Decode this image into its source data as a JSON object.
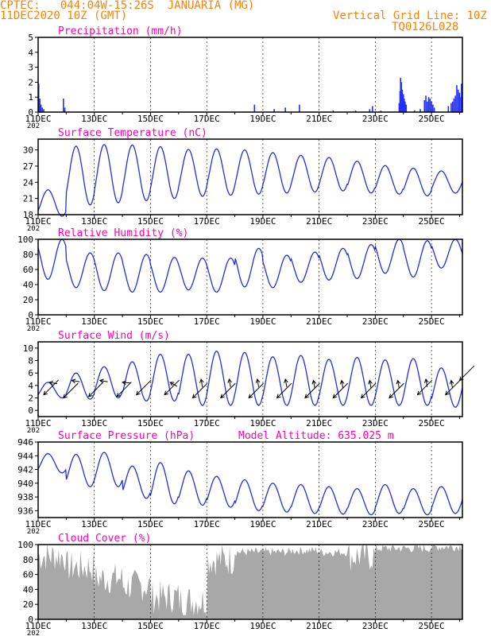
{
  "header": {
    "line1": "CPTEC:   044:04W-15:26S  JANUARIA (MG)",
    "line2": "11DEC2020 10Z (GMT)",
    "right1": "Vertical Grid Line: 10Z",
    "right2": "TQ0126L028",
    "color": "#ff8000"
  },
  "colors": {
    "title": "#ff00aa",
    "line": "#2030e0",
    "precip_bar": "#2030ff",
    "cloud_fill": "#a8a8a8",
    "axis": "#000000",
    "grid": "#000000"
  },
  "x_axis": {
    "labels": [
      "11DEC",
      "13DEC",
      "15DEC",
      "17DEC",
      "19DEC",
      "21DEC",
      "23DEC",
      "25DEC"
    ],
    "year_label": "202"
  },
  "chart_data": [
    {
      "type": "bar",
      "title": "Precipitation (mm/h)",
      "ylim": [
        0,
        5
      ],
      "yticks": [
        0,
        1,
        2,
        3,
        4,
        5
      ],
      "x_range_days": [
        0,
        15.1
      ],
      "bars": [
        [
          0.02,
          1.9
        ],
        [
          0.06,
          0.9
        ],
        [
          0.1,
          0.5
        ],
        [
          0.15,
          0.3
        ],
        [
          0.2,
          0.2
        ],
        [
          0.9,
          0.9
        ],
        [
          0.95,
          0.3
        ],
        [
          7.7,
          0.5
        ],
        [
          8.4,
          0.2
        ],
        [
          8.8,
          0.3
        ],
        [
          9.3,
          0.5
        ],
        [
          10.5,
          0.1
        ],
        [
          11.3,
          0.1
        ],
        [
          11.8,
          0.2
        ],
        [
          11.9,
          0.4
        ],
        [
          12.2,
          0.1
        ],
        [
          12.85,
          0.6
        ],
        [
          12.88,
          1.4
        ],
        [
          12.9,
          2.3
        ],
        [
          12.93,
          2.0
        ],
        [
          12.96,
          1.5
        ],
        [
          13.0,
          1.2
        ],
        [
          13.03,
          0.9
        ],
        [
          13.06,
          0.7
        ],
        [
          13.1,
          0.5
        ],
        [
          13.4,
          0.1
        ],
        [
          13.6,
          0.2
        ],
        [
          13.75,
          0.8
        ],
        [
          13.8,
          1.1
        ],
        [
          13.85,
          0.7
        ],
        [
          13.9,
          1.0
        ],
        [
          13.95,
          0.9
        ],
        [
          14.0,
          0.7
        ],
        [
          14.05,
          0.5
        ],
        [
          14.1,
          0.3
        ],
        [
          14.6,
          0.4
        ],
        [
          14.7,
          0.6
        ],
        [
          14.75,
          0.7
        ],
        [
          14.8,
          0.9
        ],
        [
          14.85,
          1.1
        ],
        [
          14.9,
          1.8
        ],
        [
          14.95,
          1.5
        ],
        [
          15.0,
          1.3
        ],
        [
          15.05,
          1.0
        ],
        [
          15.07,
          1.9
        ]
      ]
    },
    {
      "type": "line",
      "title": "Surface Temperature (nC)",
      "ylim": [
        18,
        32
      ],
      "yticks": [
        18,
        21,
        24,
        27,
        30
      ],
      "x_range_days": [
        0,
        15.1
      ],
      "daily_max": [
        22.6,
        30.7,
        31.0,
        30.9,
        30.6,
        30.1,
        30.2,
        30.0,
        29.5,
        29.0,
        28.6,
        27.9,
        27.1,
        26.6,
        26.1
      ],
      "daily_min": [
        17.7,
        19.8,
        20.2,
        20.6,
        21.0,
        21.4,
        21.6,
        21.8,
        22.0,
        22.2,
        22.4,
        22.0,
        21.8,
        21.5,
        22.0
      ]
    },
    {
      "type": "line",
      "title": "Relative Humidity (%)",
      "ylim": [
        0,
        100
      ],
      "yticks": [
        0,
        20,
        40,
        60,
        80,
        100
      ],
      "x_range_days": [
        0,
        15.1
      ],
      "daily_max": [
        100,
        82,
        82,
        80,
        76,
        75,
        75,
        88,
        79,
        83,
        88,
        93,
        100,
        98,
        100
      ],
      "daily_min": [
        47,
        36,
        32,
        30,
        30,
        33,
        30,
        37,
        36,
        43,
        46,
        48,
        55,
        50,
        62
      ]
    },
    {
      "type": "line",
      "title": "Surface Wind (m/s)",
      "ylim": [
        -1,
        11
      ],
      "yticks": [
        0,
        2,
        4,
        6,
        8,
        10
      ],
      "x_range_days": [
        0,
        15.1
      ],
      "daily_max": [
        4.5,
        6.0,
        7.0,
        7.8,
        9.0,
        9.0,
        9.5,
        9.3,
        8.6,
        8.8,
        8.2,
        8.5,
        8.1,
        8.3,
        6.8
      ],
      "daily_min": [
        2.0,
        1.8,
        2.0,
        1.5,
        1.5,
        0.8,
        0.8,
        0.8,
        0.8,
        0.8,
        0.8,
        0.8,
        0.8,
        0.8,
        0.5
      ],
      "wind_arrows": [
        [
          0.2,
          2.5,
          45
        ],
        [
          0.4,
          4.5,
          -10
        ],
        [
          0.9,
          2.0,
          45
        ],
        [
          1.2,
          4.8,
          -10
        ],
        [
          1.8,
          2.2,
          45
        ],
        [
          2.2,
          4.8,
          -10
        ],
        [
          2.8,
          2.2,
          45
        ],
        [
          3.0,
          4.5,
          -5
        ],
        [
          3.5,
          2.5,
          45
        ],
        [
          4.5,
          2.5,
          45
        ],
        [
          4.7,
          4.5,
          -30
        ],
        [
          5.5,
          2.0,
          45
        ],
        [
          5.8,
          5.0,
          -80
        ],
        [
          6.5,
          2.0,
          45
        ],
        [
          6.8,
          5.0,
          -80
        ],
        [
          7.5,
          2.0,
          45
        ],
        [
          7.8,
          5.0,
          -80
        ],
        [
          8.5,
          2.0,
          45
        ],
        [
          8.8,
          5.0,
          -80
        ],
        [
          9.5,
          2.0,
          45
        ],
        [
          9.8,
          4.8,
          -80
        ],
        [
          10.5,
          2.0,
          45
        ],
        [
          10.8,
          4.8,
          -80
        ],
        [
          11.5,
          2.0,
          45
        ],
        [
          11.8,
          4.8,
          -80
        ],
        [
          12.5,
          2.0,
          45
        ],
        [
          12.8,
          4.8,
          -80
        ],
        [
          13.5,
          2.5,
          45
        ],
        [
          13.8,
          5.0,
          -80
        ],
        [
          14.5,
          2.5,
          45
        ],
        [
          14.7,
          4.8,
          -80
        ],
        [
          15.0,
          4.8,
          45
        ]
      ]
    },
    {
      "type": "line",
      "title": "Surface Pressure (hPa)",
      "annotation": "Model Altitude: 635.025 m",
      "ylim": [
        935,
        946
      ],
      "yticks": [
        936,
        938,
        940,
        942,
        944,
        946
      ],
      "x_range_days": [
        0,
        15.1
      ],
      "daily_max": [
        944.3,
        944.2,
        944.5,
        942.5,
        943.0,
        941.8,
        941.0,
        940.5,
        940.0,
        939.8,
        939.5,
        939.2,
        939.8,
        939.2,
        939.5
      ],
      "daily_min": [
        941.5,
        939.5,
        939.5,
        937.8,
        937.0,
        936.8,
        936.5,
        936.0,
        935.8,
        935.6,
        935.5,
        935.4,
        935.6,
        935.4,
        935.6
      ]
    },
    {
      "type": "area",
      "title": "Cloud Cover (%)",
      "ylim": [
        0,
        100
      ],
      "yticks": [
        0,
        20,
        40,
        60,
        80,
        100
      ],
      "x_range_days": [
        0,
        15.1
      ],
      "daily_level": [
        85,
        70,
        55,
        45,
        30,
        25,
        80,
        90,
        90,
        92,
        90,
        85,
        95,
        95,
        97,
        98
      ]
    }
  ]
}
